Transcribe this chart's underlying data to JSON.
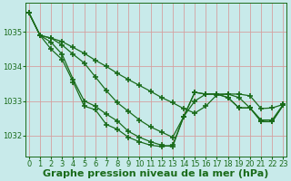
{
  "xlabel": "Graphe pression niveau de la mer (hPa)",
  "background_color": "#c8eaea",
  "line_color": "#1a6b1a",
  "grid_color": "#d4a0a0",
  "yticks": [
    1032,
    1033,
    1034,
    1035
  ],
  "xtick_labels": [
    "0",
    "1",
    "2",
    "3",
    "4",
    "5",
    "6",
    "7",
    "8",
    "9",
    "10",
    "11",
    "12",
    "13",
    "14",
    "15",
    "16",
    "17",
    "18",
    "19",
    "20",
    "21",
    "22",
    "23"
  ],
  "xlim": [
    -0.3,
    23.3
  ],
  "ylim": [
    1031.4,
    1035.85
  ],
  "series": [
    [
      1035.55,
      1034.9,
      1034.82,
      1034.72,
      1034.55,
      1034.38,
      1034.18,
      1034.0,
      1033.8,
      1033.62,
      1033.45,
      1033.28,
      1033.1,
      1032.95,
      1032.78,
      1032.65,
      1032.85,
      1033.18,
      1033.2,
      1033.2,
      1033.15,
      1032.78,
      1032.8,
      1032.9
    ],
    [
      1035.55,
      1034.9,
      1034.82,
      1034.62,
      1034.35,
      1034.1,
      1033.7,
      1033.3,
      1032.95,
      1032.7,
      1032.45,
      1032.25,
      1032.1,
      1031.95,
      1032.55,
      1033.25,
      1033.2,
      1033.2,
      1033.2,
      1033.1,
      1032.8,
      1032.45,
      1032.45,
      1032.9
    ],
    [
      1035.55,
      1034.9,
      1034.7,
      1034.35,
      1033.62,
      1033.0,
      1032.85,
      1032.62,
      1032.42,
      1032.12,
      1031.95,
      1031.82,
      1031.72,
      1031.68,
      1032.55,
      1033.25,
      1033.2,
      1033.2,
      1033.1,
      1032.8,
      1032.8,
      1032.4,
      1032.4,
      1032.88
    ],
    [
      1035.55,
      1034.9,
      1034.5,
      1034.2,
      1033.55,
      1032.85,
      1032.75,
      1032.32,
      1032.18,
      1031.95,
      1031.82,
      1031.72,
      1031.68,
      1031.72,
      1032.55,
      1033.0,
      1033.2,
      1033.2,
      1033.1,
      1032.8,
      1032.8,
      1032.42,
      1032.4,
      1032.88
    ]
  ],
  "xlabel_fontsize": 8,
  "tick_fontsize": 6,
  "marker": "+",
  "markersize": 4,
  "markeredgewidth": 1.2,
  "linewidth": 0.9
}
